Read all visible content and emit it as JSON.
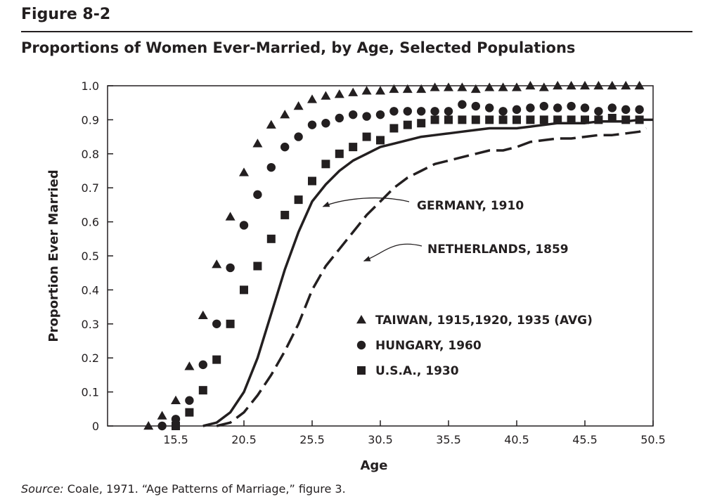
{
  "header": {
    "figure_label": "Figure 8-2",
    "title": "Proportions of Women Ever-Married, by Age, Selected Populations"
  },
  "source": {
    "label": "Source:",
    "text": " Coale, 1971. “Age Patterns of Marriage,” figure 3."
  },
  "chart_data": {
    "type": "scatter",
    "xlabel": "Age",
    "ylabel": "Proportion Ever Married",
    "xlim": [
      10.5,
      50.5
    ],
    "ylim": [
      0,
      1.0
    ],
    "x_ticks": [
      "15.5",
      "20.5",
      "25.5",
      "30.5",
      "35.5",
      "40.5",
      "45.5",
      "50.5"
    ],
    "y_ticks": [
      "0",
      "0.1",
      "0.2",
      "0.3",
      "0.4",
      "0.5",
      "0.6",
      "0.7",
      "0.8",
      "0.9",
      "1.0"
    ],
    "color": "#231f20",
    "series": [
      {
        "name": "TAIWAN, 1915,1920, 1935 (AVG)",
        "marker": "triangle",
        "x": [
          13.5,
          14.5,
          15.5,
          16.5,
          17.5,
          18.5,
          19.5,
          20.5,
          21.5,
          22.5,
          23.5,
          24.5,
          25.5,
          26.5,
          27.5,
          28.5,
          29.5,
          30.5,
          31.5,
          32.5,
          33.5,
          34.5,
          35.5,
          36.5,
          37.5,
          38.5,
          39.5,
          40.5,
          41.5,
          42.5,
          43.5,
          44.5,
          45.5,
          46.5,
          47.5,
          48.5,
          49.5
        ],
        "y": [
          0.0,
          0.03,
          0.075,
          0.175,
          0.325,
          0.475,
          0.615,
          0.745,
          0.83,
          0.885,
          0.915,
          0.94,
          0.96,
          0.97,
          0.975,
          0.98,
          0.985,
          0.985,
          0.99,
          0.99,
          0.99,
          0.995,
          0.995,
          0.995,
          0.99,
          0.995,
          0.995,
          0.995,
          1.0,
          0.995,
          1.0,
          1.0,
          1.0,
          1.0,
          1.0,
          1.0,
          1.0
        ]
      },
      {
        "name": "HUNGARY, 1960",
        "marker": "circle",
        "x": [
          14.5,
          15.5,
          16.5,
          17.5,
          18.5,
          19.5,
          20.5,
          21.5,
          22.5,
          23.5,
          24.5,
          25.5,
          26.5,
          27.5,
          28.5,
          29.5,
          30.5,
          31.5,
          32.5,
          33.5,
          34.5,
          35.5,
          36.5,
          37.5,
          38.5,
          39.5,
          40.5,
          41.5,
          42.5,
          43.5,
          44.5,
          45.5,
          46.5,
          47.5,
          48.5,
          49.5
        ],
        "y": [
          0.0,
          0.02,
          0.075,
          0.18,
          0.3,
          0.465,
          0.59,
          0.68,
          0.76,
          0.82,
          0.85,
          0.885,
          0.89,
          0.905,
          0.915,
          0.91,
          0.915,
          0.925,
          0.925,
          0.925,
          0.925,
          0.925,
          0.945,
          0.94,
          0.935,
          0.925,
          0.93,
          0.935,
          0.94,
          0.935,
          0.94,
          0.935,
          0.925,
          0.935,
          0.93,
          0.93
        ]
      },
      {
        "name": "U.S.A., 1930",
        "marker": "square",
        "x": [
          15.5,
          16.5,
          17.5,
          18.5,
          19.5,
          20.5,
          21.5,
          22.5,
          23.5,
          24.5,
          25.5,
          26.5,
          27.5,
          28.5,
          29.5,
          30.5,
          31.5,
          32.5,
          33.5,
          34.5,
          35.5,
          36.5,
          37.5,
          38.5,
          39.5,
          40.5,
          41.5,
          42.5,
          43.5,
          44.5,
          45.5,
          46.5,
          47.5,
          48.5,
          49.5
        ],
        "y": [
          0.0,
          0.04,
          0.105,
          0.195,
          0.3,
          0.4,
          0.47,
          0.55,
          0.62,
          0.665,
          0.72,
          0.77,
          0.8,
          0.82,
          0.85,
          0.84,
          0.875,
          0.885,
          0.89,
          0.9,
          0.9,
          0.9,
          0.9,
          0.9,
          0.9,
          0.9,
          0.9,
          0.9,
          0.9,
          0.9,
          0.9,
          0.9,
          0.905,
          0.9,
          0.9
        ]
      },
      {
        "name": "GERMANY, 1910",
        "marker": "solid-line",
        "x": [
          17.5,
          18.5,
          19.5,
          20.5,
          21.5,
          22.5,
          23.5,
          24.5,
          25.5,
          26.5,
          27.5,
          28.5,
          29.5,
          30.5,
          31.5,
          32.5,
          33.5,
          34.5,
          35.5,
          36.5,
          37.5,
          38.5,
          39.5,
          40.5,
          41.5,
          42.5,
          43.5,
          44.5,
          45.5,
          46.5,
          47.5,
          48.5,
          49.5,
          50.5
        ],
        "y": [
          0.0,
          0.01,
          0.04,
          0.1,
          0.2,
          0.33,
          0.46,
          0.57,
          0.66,
          0.71,
          0.75,
          0.78,
          0.8,
          0.82,
          0.83,
          0.84,
          0.85,
          0.855,
          0.86,
          0.865,
          0.87,
          0.875,
          0.875,
          0.875,
          0.88,
          0.885,
          0.89,
          0.89,
          0.89,
          0.895,
          0.895,
          0.895,
          0.9,
          0.9
        ]
      },
      {
        "name": "NETHERLANDS, 1859",
        "marker": "dashed-line",
        "x": [
          18.5,
          19.5,
          20.5,
          21.5,
          22.5,
          23.5,
          24.5,
          25.5,
          26.5,
          27.5,
          28.5,
          29.5,
          30.5,
          31.5,
          32.5,
          33.5,
          34.5,
          35.5,
          36.5,
          37.5,
          38.5,
          39.5,
          40.5,
          41.5,
          42.5,
          43.5,
          44.5,
          45.5,
          46.5,
          47.5,
          48.5,
          49.5,
          50.0
        ],
        "y": [
          0.0,
          0.01,
          0.04,
          0.09,
          0.15,
          0.22,
          0.3,
          0.4,
          0.47,
          0.52,
          0.57,
          0.62,
          0.66,
          0.7,
          0.73,
          0.75,
          0.77,
          0.78,
          0.79,
          0.8,
          0.81,
          0.81,
          0.82,
          0.835,
          0.84,
          0.845,
          0.845,
          0.85,
          0.855,
          0.855,
          0.86,
          0.865,
          0.875
        ]
      }
    ],
    "annotations": [
      {
        "text": "GERMANY, 1910",
        "arrow_x": 26.3,
        "arrow_y": 0.645
      },
      {
        "text": "NETHERLANDS, 1859",
        "arrow_x": 29.3,
        "arrow_y": 0.485
      }
    ],
    "legend": {
      "placement": "inside lower-right",
      "entries": [
        {
          "marker": "triangle",
          "label": "TAIWAN, 1915,1920, 1935 (AVG)"
        },
        {
          "marker": "circle",
          "label": "HUNGARY, 1960"
        },
        {
          "marker": "square",
          "label": "U.S.A., 1930"
        }
      ]
    }
  }
}
